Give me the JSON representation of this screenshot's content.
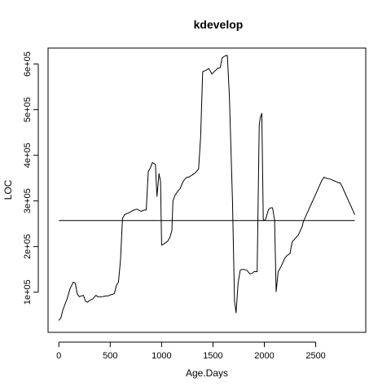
{
  "chart_data": {
    "type": "line",
    "title": "kdevelop",
    "xlabel": "Age.Days",
    "ylabel": "LOC",
    "xlim": [
      -105,
      2987
    ],
    "ylim": [
      12000,
      635000
    ],
    "grid": false,
    "legend": "none",
    "line_color": "#000000",
    "x_ticks": [
      0,
      500,
      1000,
      1500,
      2000,
      2500
    ],
    "x_tick_labels": [
      "0",
      "500",
      "1000",
      "1500",
      "2000",
      "2500"
    ],
    "y_ticks": [
      100000,
      200000,
      300000,
      400000,
      500000,
      600000
    ],
    "y_tick_labels": [
      "1e+05",
      "2e+05",
      "3e+05",
      "4e+05",
      "5e+05",
      "6e+05"
    ],
    "reference_line": {
      "y": 257000,
      "x_range": [
        0,
        2880
      ]
    },
    "series": [
      {
        "x": [
          0,
          20,
          40,
          80,
          110,
          140,
          160,
          180,
          200,
          220,
          240,
          260,
          280,
          300,
          330,
          360,
          380,
          400,
          420,
          440,
          460,
          480,
          500,
          520,
          540,
          560,
          580,
          600,
          620,
          640,
          660,
          690,
          720,
          760,
          800,
          830,
          850,
          870,
          890,
          910,
          940,
          955,
          975,
          990,
          1000,
          1030,
          1060,
          1080,
          1100,
          1110,
          1130,
          1160,
          1180,
          1200,
          1220,
          1240,
          1270,
          1300,
          1330,
          1360,
          1380,
          1400,
          1430,
          1460,
          1490,
          1510,
          1530,
          1550,
          1570,
          1590,
          1620,
          1640,
          1660,
          1690,
          1710,
          1725,
          1745,
          1765,
          1785,
          1800,
          1830,
          1860,
          1880,
          1900,
          1930,
          1950,
          1960,
          1975,
          1990,
          2010,
          2040,
          2060,
          2080,
          2100,
          2115,
          2135,
          2160,
          2180,
          2200,
          2220,
          2250,
          2270,
          2290,
          2300,
          2310,
          2330,
          2350,
          2370,
          2380,
          2400,
          2420,
          2440,
          2460,
          2480,
          2500,
          2520,
          2540,
          2560,
          2580,
          2600,
          2620,
          2640,
          2660,
          2680,
          2700,
          2720,
          2740,
          2760,
          2780,
          2800,
          2820,
          2840,
          2860,
          2880
        ],
        "y": [
          38000,
          44000,
          62000,
          85000,
          108000,
          122000,
          120000,
          96000,
          90000,
          92000,
          93000,
          80000,
          78000,
          82000,
          85000,
          93000,
          90000,
          90000,
          90000,
          91000,
          92000,
          92000,
          94000,
          95000,
          97000,
          115000,
          122000,
          170000,
          262000,
          270000,
          272000,
          275000,
          279000,
          282000,
          277000,
          280000,
          280000,
          364000,
          372000,
          384000,
          380000,
          310000,
          360000,
          343000,
          203000,
          207000,
          212000,
          220000,
          235000,
          300000,
          312000,
          322000,
          327000,
          338000,
          346000,
          351000,
          353000,
          357000,
          362000,
          370000,
          440000,
          583000,
          586000,
          590000,
          578000,
          583000,
          587000,
          591000,
          592000,
          614000,
          618000,
          619000,
          530000,
          300000,
          80000,
          55000,
          120000,
          148000,
          150000,
          150000,
          148000,
          140000,
          141000,
          145000,
          145000,
          465000,
          482000,
          492000,
          258000,
          258000,
          281000,
          285000,
          285000,
          258000,
          101000,
          145000,
          155000,
          165000,
          175000,
          180000,
          185000,
          210000,
          215000,
          218000,
          220000,
          225000,
          235000,
          245000,
          255000,
          265000,
          275000,
          285000,
          295000,
          305000,
          315000,
          325000,
          335000,
          345000,
          352000,
          350000,
          349000,
          348000,
          346000,
          344000,
          342000,
          340000,
          339000,
          330000,
          320000,
          310000,
          300000,
          290000,
          280000,
          270000
        ]
      }
    ]
  }
}
